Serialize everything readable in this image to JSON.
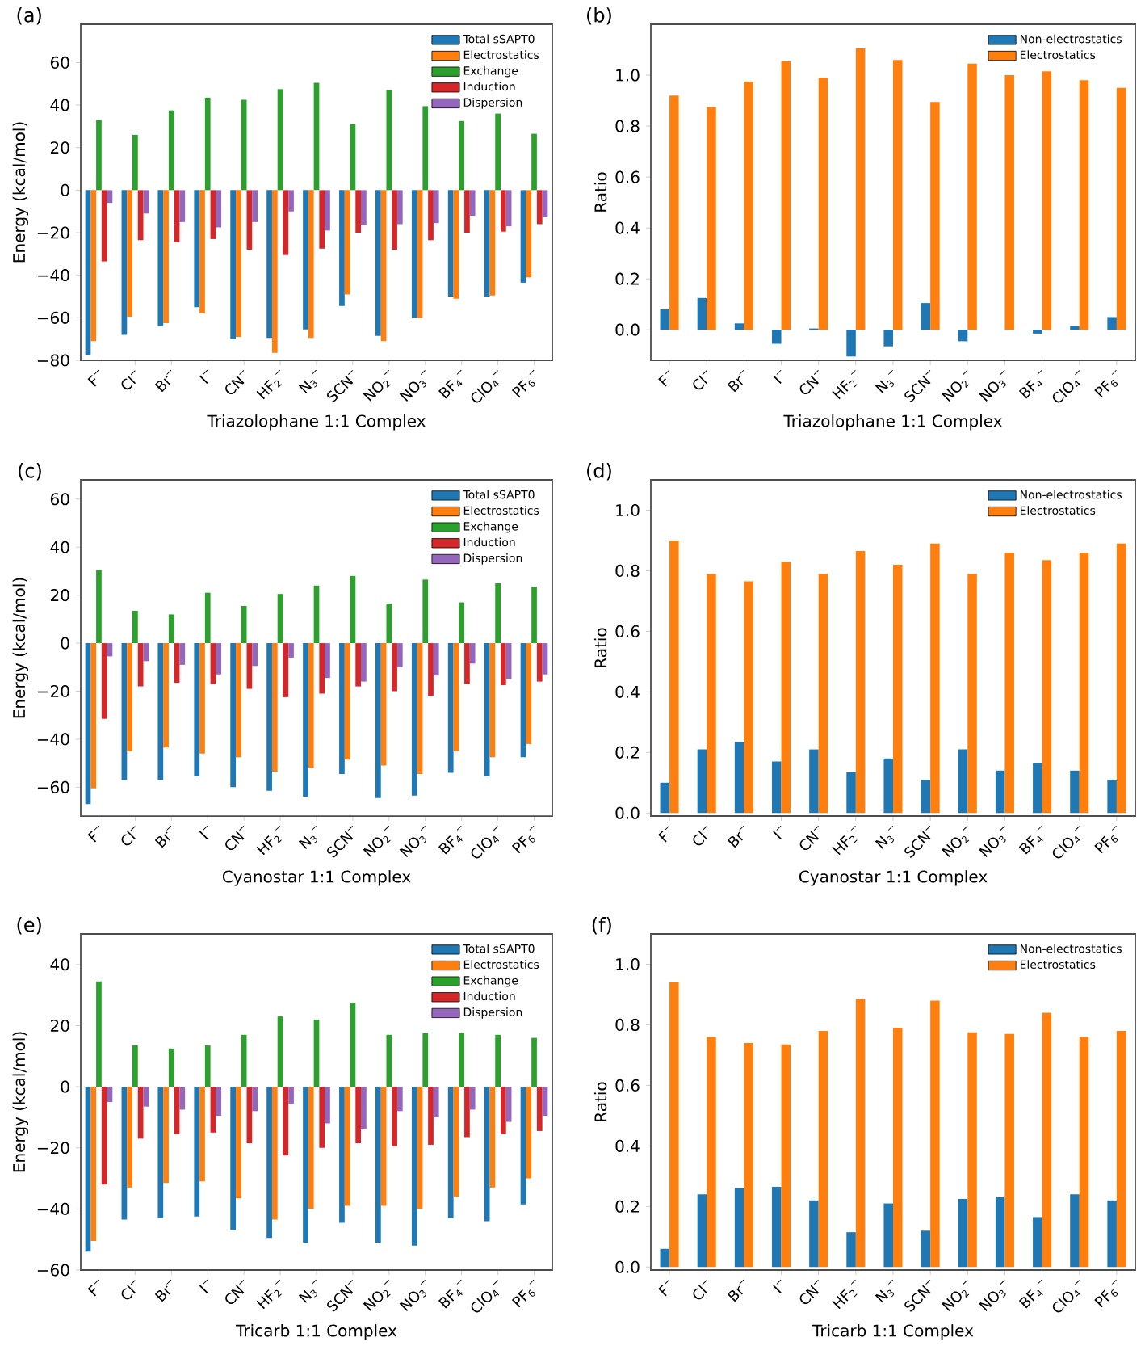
{
  "chart_data": [
    {
      "type": "bar",
      "title": "(a)",
      "xlabel": "Triazolophane 1:1 Complex",
      "ylabel": "Energy (kcal/mol)",
      "legend": "top right",
      "categories": [
        "F$^{−}$",
        "Cl$^{−}$",
        "Br$^{−}$",
        "I$^{−}$",
        "CN$^{−}$",
        "HF$_{2}$$^{−}$",
        "N$_{3}$$^{−}$",
        "SCN$^{−}$",
        "NO$_{2}$$^{−}$",
        "NO$_{3}$$^{−}$",
        "BF$_{4}$$^{−}$",
        "ClO$_{4}$$^{−}$",
        "PF$_{6}$$^{−}$"
      ],
      "ylim": [
        -80,
        78
      ],
      "yticks": [
        {
          "value": -80,
          "label": "−80"
        },
        {
          "value": -60,
          "label": "−60"
        },
        {
          "value": -40,
          "label": "−40"
        },
        {
          "value": -20,
          "label": "−20"
        },
        0,
        20,
        40,
        60
      ],
      "series": [
        {
          "name": "Total sSAPT0",
          "color": "#1f77b4",
          "values": [
            -77.5,
            -68,
            -64,
            -55,
            -70,
            -69.5,
            -65.5,
            -54.5,
            -68.5,
            -60,
            -50,
            -50,
            -43.5
          ]
        },
        {
          "name": "Electrostatics",
          "color": "#ff7f0e",
          "values": [
            -71,
            -59.5,
            -62.5,
            -58,
            -69,
            -76.5,
            -69.5,
            -49,
            -71,
            -60,
            -51,
            -49.5,
            -41
          ]
        },
        {
          "name": "Exchange",
          "color": "#2ca02c",
          "values": [
            33,
            26,
            37.5,
            43.5,
            42.5,
            47.5,
            50.5,
            31,
            47,
            39.5,
            32.5,
            36,
            26.5
          ]
        },
        {
          "name": "Induction",
          "color": "#d62728",
          "values": [
            -33.5,
            -23.5,
            -24.5,
            -23,
            -28,
            -30.5,
            -27.5,
            -20,
            -28,
            -23.5,
            -20,
            -19.5,
            -16
          ]
        },
        {
          "name": "Dispersion",
          "color": "#9467bd",
          "values": [
            -6,
            -11,
            -15,
            -17.5,
            -15,
            -10,
            -19,
            -16.5,
            -16,
            -15.5,
            -12,
            -17,
            -12.5
          ]
        }
      ]
    },
    {
      "type": "bar",
      "title": "(b)",
      "xlabel": "Triazolophane 1:1 Complex",
      "ylabel": "Ratio",
      "legend": "top right",
      "categories": [
        "F$^{−}$",
        "Cl$^{−}$",
        "Br$^{−}$",
        "I$^{−}$",
        "CN$^{−}$",
        "HF$_{2}$$^{−}$",
        "N$_{3}$$^{−}$",
        "SCN$^{−}$",
        "NO$_{2}$$^{−}$",
        "NO$_{3}$$^{−}$",
        "BF$_{4}$$^{−}$",
        "ClO$_{4}$$^{−}$",
        "PF$_{6}$$^{−}$"
      ],
      "ylim": [
        -0.12,
        1.2
      ],
      "yticks": [
        {
          "value": 0,
          "label": "0.0"
        },
        {
          "value": 0.2,
          "label": "0.2"
        },
        {
          "value": 0.4,
          "label": "0.4"
        },
        {
          "value": 0.6,
          "label": "0.6"
        },
        {
          "value": 0.8,
          "label": "0.8"
        },
        {
          "value": 1,
          "label": "1.0"
        }
      ],
      "series": [
        {
          "name": "Non-electrostatics",
          "color": "#1f77b4",
          "values": [
            0.08,
            0.125,
            0.025,
            -0.055,
            0.005,
            -0.105,
            -0.065,
            0.105,
            -0.045,
            0.0,
            -0.015,
            0.015,
            0.05
          ]
        },
        {
          "name": "Electrostatics",
          "color": "#ff7f0e",
          "values": [
            0.92,
            0.875,
            0.975,
            1.055,
            0.99,
            1.105,
            1.06,
            0.895,
            1.045,
            1.0,
            1.015,
            0.98,
            0.95
          ]
        }
      ]
    },
    {
      "type": "bar",
      "title": "(c)",
      "xlabel": "Cyanostar 1:1 Complex",
      "ylabel": "Energy (kcal/mol)",
      "legend": "top right",
      "categories": [
        "F$^{−}$",
        "Cl$^{−}$",
        "Br$^{−}$",
        "I$^{−}$",
        "CN$^{−}$",
        "HF$_{2}$$^{−}$",
        "N$_{3}$$^{−}$",
        "SCN$^{−}$",
        "NO$_{2}$$^{−}$",
        "NO$_{3}$$^{−}$",
        "BF$_{4}$$^{−}$",
        "ClO$_{4}$$^{−}$",
        "PF$_{6}$$^{−}$"
      ],
      "ylim": [
        -72,
        68
      ],
      "yticks": [
        {
          "value": -60,
          "label": "−60"
        },
        {
          "value": -40,
          "label": "−40"
        },
        {
          "value": -20,
          "label": "−20"
        },
        0,
        20,
        40,
        60
      ],
      "series": [
        {
          "name": "Total sSAPT0",
          "color": "#1f77b4",
          "values": [
            -67,
            -57,
            -57,
            -55.5,
            -60,
            -61.5,
            -64,
            -54.5,
            -64.5,
            -63.5,
            -54,
            -55.5,
            -47.5
          ]
        },
        {
          "name": "Electrostatics",
          "color": "#ff7f0e",
          "values": [
            -60.5,
            -45,
            -43.5,
            -46,
            -47.5,
            -53.5,
            -52,
            -48.5,
            -51,
            -54.5,
            -45,
            -47.5,
            -42
          ]
        },
        {
          "name": "Exchange",
          "color": "#2ca02c",
          "values": [
            30.5,
            13.5,
            12,
            21,
            15.5,
            20.5,
            24,
            28,
            16.5,
            26.5,
            17,
            25,
            23.5
          ]
        },
        {
          "name": "Induction",
          "color": "#d62728",
          "values": [
            -31.5,
            -18,
            -16.5,
            -17,
            -19,
            -22.5,
            -21,
            -18,
            -20,
            -22,
            -17,
            -17.5,
            -16
          ]
        },
        {
          "name": "Dispersion",
          "color": "#9467bd",
          "values": [
            -5.5,
            -7.5,
            -9,
            -13,
            -9.5,
            -6,
            -14.5,
            -16,
            -10,
            -13.5,
            -8.5,
            -15,
            -13
          ]
        }
      ]
    },
    {
      "type": "bar",
      "title": "(d)",
      "xlabel": "Cyanostar 1:1 Complex",
      "ylabel": "Ratio",
      "legend": "top right",
      "categories": [
        "F$^{−}$",
        "Cl$^{−}$",
        "Br$^{−}$",
        "I$^{−}$",
        "CN$^{−}$",
        "HF$_{2}$$^{−}$",
        "N$_{3}$$^{−}$",
        "SCN$^{−}$",
        "NO$_{2}$$^{−}$",
        "NO$_{3}$$^{−}$",
        "BF$_{4}$$^{−}$",
        "ClO$_{4}$$^{−}$",
        "PF$_{6}$$^{−}$"
      ],
      "ylim": [
        -0.01,
        1.1
      ],
      "yticks": [
        {
          "value": 0,
          "label": "0.0"
        },
        {
          "value": 0.2,
          "label": "0.2"
        },
        {
          "value": 0.4,
          "label": "0.4"
        },
        {
          "value": 0.6,
          "label": "0.6"
        },
        {
          "value": 0.8,
          "label": "0.8"
        },
        {
          "value": 1,
          "label": "1.0"
        }
      ],
      "series": [
        {
          "name": "Non-electrostatics",
          "color": "#1f77b4",
          "values": [
            0.1,
            0.21,
            0.235,
            0.17,
            0.21,
            0.135,
            0.18,
            0.11,
            0.21,
            0.14,
            0.165,
            0.14,
            0.11
          ]
        },
        {
          "name": "Electrostatics",
          "color": "#ff7f0e",
          "values": [
            0.9,
            0.79,
            0.765,
            0.83,
            0.79,
            0.865,
            0.82,
            0.89,
            0.79,
            0.86,
            0.835,
            0.86,
            0.89
          ]
        }
      ]
    },
    {
      "type": "bar",
      "title": "(e)",
      "xlabel": "Tricarb 1:1 Complex",
      "ylabel": "Energy (kcal/mol)",
      "legend": "top right",
      "categories": [
        "F$^{−}$",
        "Cl$^{−}$",
        "Br$^{−}$",
        "I$^{−}$",
        "CN$^{−}$",
        "HF$_{2}$$^{−}$",
        "N$_{3}$$^{−}$",
        "SCN$^{−}$",
        "NO$_{2}$$^{−}$",
        "NO$_{3}$$^{−}$",
        "BF$_{4}$$^{−}$",
        "ClO$_{4}$$^{−}$",
        "PF$_{6}$$^{−}$"
      ],
      "ylim": [
        -60,
        50
      ],
      "yticks": [
        {
          "value": -60,
          "label": "−60"
        },
        {
          "value": -40,
          "label": "−40"
        },
        {
          "value": -20,
          "label": "−20"
        },
        0,
        20,
        40
      ],
      "series": [
        {
          "name": "Total sSAPT0",
          "color": "#1f77b4",
          "values": [
            -54,
            -43.5,
            -43,
            -42.5,
            -47,
            -49.5,
            -51,
            -44.5,
            -51,
            -52,
            -43,
            -44,
            -38.5
          ]
        },
        {
          "name": "Electrostatics",
          "color": "#ff7f0e",
          "values": [
            -50.5,
            -33,
            -31.5,
            -31,
            -36.5,
            -43.5,
            -40,
            -39,
            -39,
            -40,
            -36,
            -33,
            -30
          ]
        },
        {
          "name": "Exchange",
          "color": "#2ca02c",
          "values": [
            34.5,
            13.5,
            12.5,
            13.5,
            17,
            23,
            22,
            27.5,
            17,
            17.5,
            17.5,
            17,
            16
          ]
        },
        {
          "name": "Induction",
          "color": "#d62728",
          "values": [
            -32,
            -17,
            -15.5,
            -15,
            -18.5,
            -22.5,
            -20,
            -18.5,
            -19.5,
            -19,
            -16.5,
            -15.5,
            -14.5
          ]
        },
        {
          "name": "Dispersion",
          "color": "#9467bd",
          "values": [
            -5,
            -6.5,
            -7.5,
            -9.5,
            -8,
            -5.5,
            -12,
            -14,
            -8,
            -10,
            -7.5,
            -11.5,
            -9.5
          ]
        }
      ]
    },
    {
      "type": "bar",
      "title": "(f)",
      "xlabel": "Tricarb 1:1 Complex",
      "ylabel": "Ratio",
      "legend": "top right",
      "categories": [
        "F$^{−}$",
        "Cl$^{−}$",
        "Br$^{−}$",
        "I$^{−}$",
        "CN$^{−}$",
        "HF$_{2}$$^{−}$",
        "N$_{3}$$^{−}$",
        "SCN$^{−}$",
        "NO$_{2}$$^{−}$",
        "NO$_{3}$$^{−}$",
        "BF$_{4}$$^{−}$",
        "ClO$_{4}$$^{−}$",
        "PF$_{6}$$^{−}$"
      ],
      "ylim": [
        -0.01,
        1.1
      ],
      "yticks": [
        {
          "value": 0,
          "label": "0.0"
        },
        {
          "value": 0.2,
          "label": "0.2"
        },
        {
          "value": 0.4,
          "label": "0.4"
        },
        {
          "value": 0.6,
          "label": "0.6"
        },
        {
          "value": 0.8,
          "label": "0.8"
        },
        {
          "value": 1,
          "label": "1.0"
        }
      ],
      "series": [
        {
          "name": "Non-electrostatics",
          "color": "#1f77b4",
          "values": [
            0.06,
            0.24,
            0.26,
            0.265,
            0.22,
            0.115,
            0.21,
            0.12,
            0.225,
            0.23,
            0.165,
            0.24,
            0.22
          ]
        },
        {
          "name": "Electrostatics",
          "color": "#ff7f0e",
          "values": [
            0.94,
            0.76,
            0.74,
            0.735,
            0.78,
            0.885,
            0.79,
            0.88,
            0.775,
            0.77,
            0.84,
            0.76,
            0.78
          ]
        }
      ]
    }
  ]
}
